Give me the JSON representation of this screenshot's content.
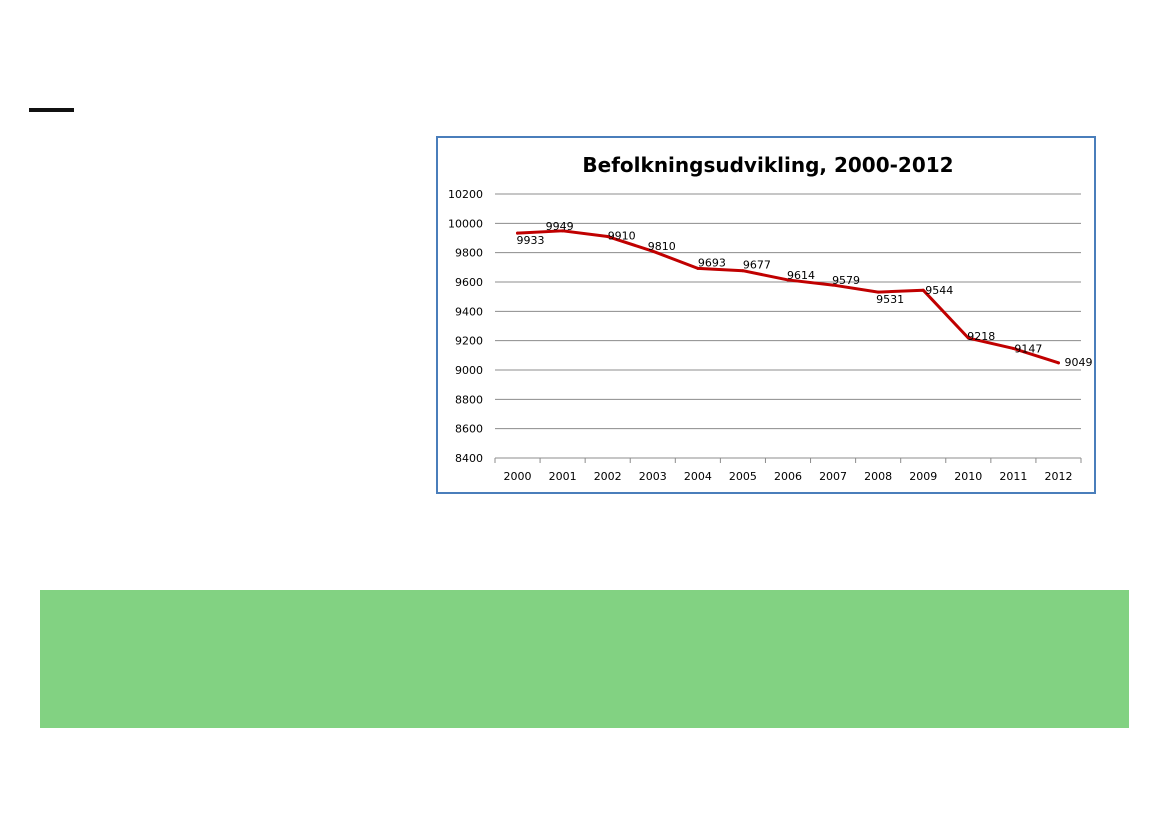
{
  "colors": {
    "frame_border": "#4a7ebb",
    "line": "#c00000",
    "grid": "#8c8c8c",
    "green_bar": "#82d282"
  },
  "chart_data": {
    "type": "line",
    "title": "Befolkningsudvikling, 2000-2012",
    "xlabel": "",
    "ylabel": "",
    "categories": [
      "2000",
      "2001",
      "2002",
      "2003",
      "2004",
      "2005",
      "2006",
      "2007",
      "2008",
      "2009",
      "2010",
      "2011",
      "2012"
    ],
    "series": [
      {
        "values": [
          9933,
          9949,
          9910,
          9810,
          9693,
          9677,
          9614,
          9579,
          9531,
          9544,
          9218,
          9147,
          9049
        ],
        "labels": [
          "9933",
          "9949",
          "9910",
          "9810",
          "9693",
          "9677",
          "9614",
          "9579",
          "9531",
          "9544",
          "9218",
          "9147",
          "9049"
        ]
      }
    ],
    "ylim": [
      8400,
      10200
    ],
    "yticks": [
      "8400",
      "8600",
      "8800",
      "9000",
      "9200",
      "9400",
      "9600",
      "9800",
      "10000",
      "10200"
    ],
    "grid": true,
    "legend": "none"
  }
}
